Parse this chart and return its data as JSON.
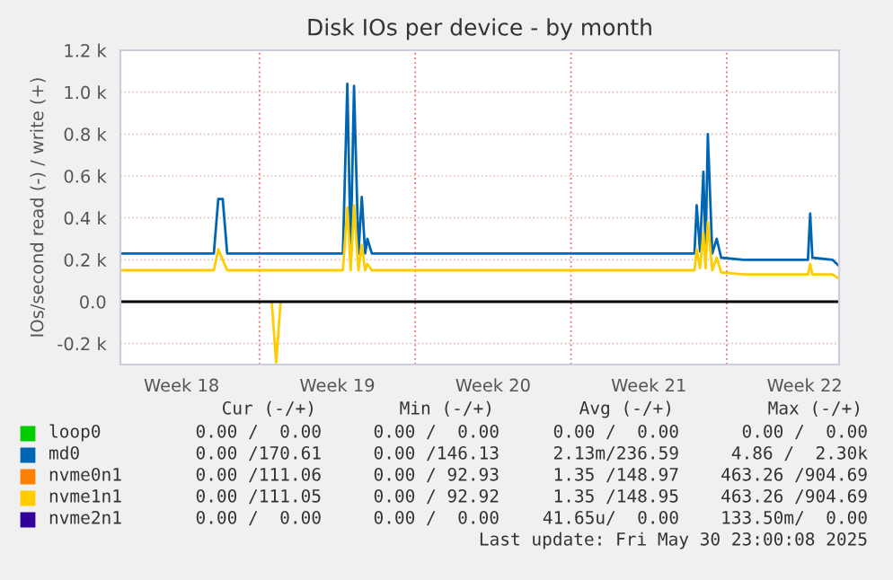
{
  "chart_data": {
    "type": "line",
    "title": "Disk IOs per device - by month",
    "ylabel": "IOs/second read (-) / write (+)",
    "xlim": [
      "2025-04-28T18:00",
      "2025-05-31T01:12"
    ],
    "ylim": [
      -300,
      1200
    ],
    "xticks": [
      {
        "value": "2025-05-01T12:00",
        "label": "Week 18"
      },
      {
        "value": "2025-05-05",
        "label": null
      },
      {
        "value": "2025-05-08T12:00",
        "label": "Week 19"
      },
      {
        "value": "2025-05-12",
        "label": null
      },
      {
        "value": "2025-05-15T12:00",
        "label": "Week 20"
      },
      {
        "value": "2025-05-19",
        "label": null
      },
      {
        "value": "2025-05-22T12:00",
        "label": "Week 21"
      },
      {
        "value": "2025-05-26",
        "label": null
      },
      {
        "value": "2025-05-29T12:00",
        "label": "Week 22"
      }
    ],
    "yticks": [
      {
        "value": -200,
        "label": "-0.2 k"
      },
      {
        "value": 0,
        "label": "0.0"
      },
      {
        "value": 200,
        "label": "0.2 k"
      },
      {
        "value": 400,
        "label": "0.4 k"
      },
      {
        "value": 600,
        "label": "0.6 k"
      },
      {
        "value": 800,
        "label": "0.8 k"
      },
      {
        "value": 1000,
        "label": "1.0 k"
      },
      {
        "value": 1200,
        "label": "1.2 k"
      }
    ],
    "grid": true,
    "legend": "bottom",
    "ref_lines": [
      {
        "axis": "y",
        "value": 0,
        "color": "#000000"
      }
    ],
    "x": [
      "2025-04-28T18:00",
      "2025-04-30T18:00",
      "2025-05-02T22:48",
      "2025-05-03T03:36",
      "2025-05-03T08:24",
      "2025-05-03T13:12",
      "2025-05-04T18:00",
      "2025-05-05T13:12",
      "2025-05-05T18:00",
      "2025-05-05T22:48",
      "2025-05-06T18:00",
      "2025-05-08T18:00",
      "2025-05-08T22:48",
      "2025-05-09T02:24",
      "2025-05-09T06:00",
      "2025-05-09T10:48",
      "2025-05-09T14:24",
      "2025-05-09T18:00",
      "2025-05-09T20:24",
      "2025-05-10T01:12",
      "2025-05-11T18:00",
      "2025-05-13T18:00",
      "2025-05-16T18:00",
      "2025-05-20T18:00",
      "2025-05-23T18:00",
      "2025-05-24T13:12",
      "2025-05-24T15:36",
      "2025-05-24T19:12",
      "2025-05-24T22:48",
      "2025-05-25T01:12",
      "2025-05-25T03:36",
      "2025-05-25T08:24",
      "2025-05-25T13:12",
      "2025-05-25T18:00",
      "2025-05-26T18:00",
      "2025-05-28T18:00",
      "2025-05-29T15:36",
      "2025-05-29T18:00",
      "2025-05-29T20:24",
      "2025-05-30T18:00",
      "2025-05-31T01:12"
    ],
    "series": [
      {
        "name": "loop0",
        "color": "#00cc00",
        "values": [
          null,
          null,
          null,
          null,
          null,
          null,
          null,
          null,
          null,
          null,
          null,
          null,
          null,
          null,
          null,
          null,
          null,
          null,
          null,
          null,
          null,
          null,
          null,
          null,
          null,
          null,
          null,
          null,
          null,
          null,
          null,
          null,
          null,
          null,
          null,
          null,
          null,
          null,
          null,
          null,
          null
        ]
      },
      {
        "name": "md0",
        "color": "#0066b3",
        "values": [
          230,
          230,
          230,
          490,
          490,
          230,
          230,
          230,
          230,
          230,
          230,
          230,
          1040,
          230,
          1030,
          230,
          500,
          230,
          300,
          230,
          230,
          230,
          230,
          230,
          230,
          230,
          460,
          240,
          620,
          240,
          800,
          230,
          300,
          210,
          200,
          200,
          200,
          420,
          210,
          200,
          170
        ]
      },
      {
        "name": "nvme0n1",
        "color": "#ff8000",
        "values": [
          null,
          null,
          null,
          null,
          null,
          null,
          null,
          null,
          null,
          null,
          null,
          null,
          null,
          null,
          null,
          null,
          null,
          null,
          null,
          null,
          null,
          null,
          null,
          null,
          null,
          null,
          null,
          null,
          null,
          null,
          null,
          null,
          null,
          null,
          null,
          null,
          null,
          null,
          null,
          null,
          null
        ]
      },
      {
        "name": "nvme1n1",
        "color": "#ffcc00",
        "values": [
          150,
          150,
          150,
          250,
          200,
          150,
          150,
          150,
          150,
          150,
          150,
          150,
          450,
          150,
          460,
          150,
          270,
          150,
          180,
          150,
          150,
          150,
          150,
          150,
          150,
          150,
          250,
          160,
          330,
          160,
          380,
          150,
          210,
          140,
          130,
          130,
          130,
          180,
          130,
          130,
          110
        ]
      },
      {
        "name": "nvme2n1",
        "color": "#330099",
        "values": [
          null,
          null,
          null,
          null,
          null,
          null,
          null,
          null,
          null,
          null,
          null,
          null,
          null,
          null,
          null,
          null,
          null,
          null,
          null,
          null,
          null,
          null,
          null,
          null,
          null,
          null,
          null,
          null,
          null,
          null,
          null,
          null,
          null,
          null,
          null,
          null,
          null,
          null,
          null,
          null,
          null
        ]
      },
      {
        "color": "#ffcc00",
        "x": [
          "2025-05-05T13:12",
          "2025-05-05T18:00",
          "2025-05-05T22:48"
        ],
        "values": [
          0,
          -290,
          0
        ]
      }
    ],
    "annotations": [
      "Cur (-/+)",
      "Min (-/+)",
      "Avg (-/+)",
      "Max (-/+)",
      "0.00 /  0.00",
      "0.00 /  0.00",
      "0.00 /  0.00",
      "0.00 /  0.00",
      "0.00 /170.61",
      "0.00 /146.13",
      "2.13m/236.59",
      "4.86 /  2.30k",
      "0.00 /111.06",
      "0.00 / 92.93",
      "1.35 /148.97",
      "463.26 /904.69",
      "0.00 /111.05",
      "0.00 / 92.92",
      "1.35 /148.95",
      "463.26 /904.69",
      "0.00 /  0.00",
      "0.00 /  0.00",
      "41.65u/  0.00",
      "133.50m/  0.00",
      "Last update: Fri May 30 23:00:08 2025"
    ]
  }
}
